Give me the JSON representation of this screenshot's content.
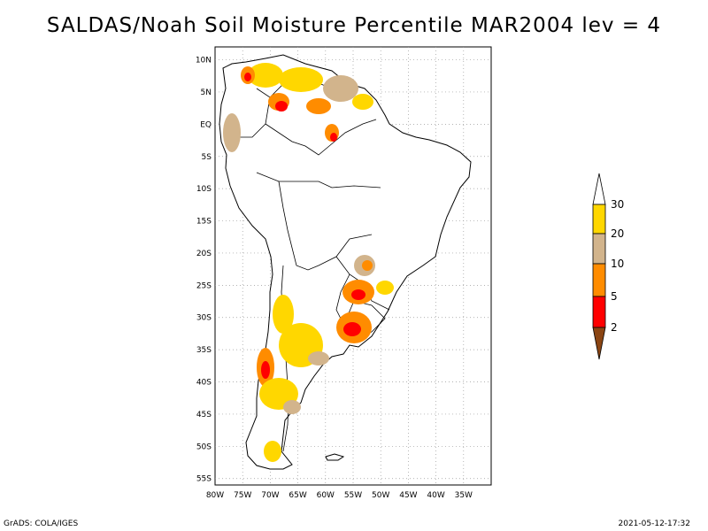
{
  "title": "SALDAS/Noah Soil Moisture Percentile MAR2004 lev = 4",
  "footer": {
    "left": "GrADS: COLA/IGES",
    "right": "2021-05-12-17:32"
  },
  "map": {
    "lon_range": [
      -80,
      -30
    ],
    "lat_range": [
      -56,
      12
    ],
    "lon_ticks": [
      "80W",
      "75W",
      "70W",
      "65W",
      "60W",
      "55W",
      "50W",
      "45W",
      "40W",
      "35W"
    ],
    "lat_ticks": [
      "10N",
      "5N",
      "EQ",
      "5S",
      "10S",
      "15S",
      "20S",
      "25S",
      "30S",
      "35S",
      "40S",
      "45S",
      "50S",
      "55S"
    ],
    "grid": true,
    "grid_style": "dotted"
  },
  "colorbar": {
    "position": "right",
    "labels": [
      "30",
      "20",
      "10",
      "5",
      "2"
    ],
    "colors": {
      "above_30": "#ffffff",
      "20_30": "#ffd700",
      "10_20": "#d2b48c",
      "5_10": "#ff8c00",
      "2_5": "#ff0000",
      "below_2": "#8b4513"
    }
  }
}
